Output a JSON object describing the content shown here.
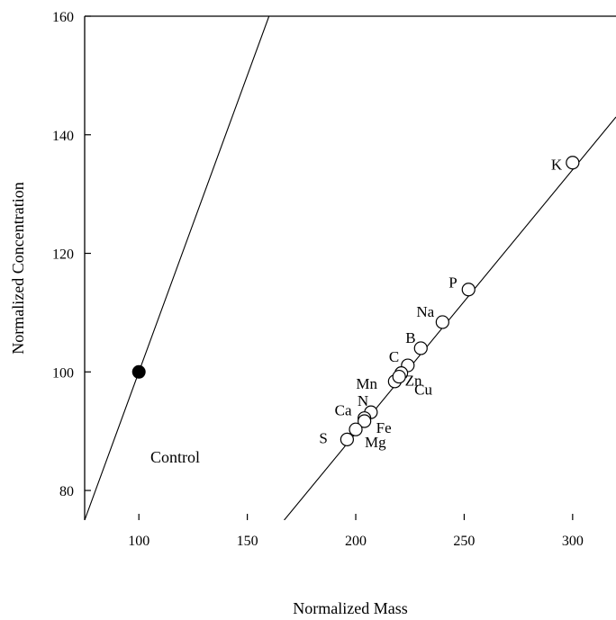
{
  "chart_data": {
    "type": "scatter",
    "xlabel": "Normalized Mass",
    "ylabel": "Normalized Concentration",
    "xlim": [
      75,
      320
    ],
    "ylim": [
      75,
      160
    ],
    "xticks": [
      100,
      150,
      200,
      250,
      300
    ],
    "yticks": [
      80,
      100,
      120,
      140,
      160
    ],
    "grid": false,
    "annotation": "Control",
    "control_point": {
      "x": 100,
      "y": 100,
      "fill": "#000000"
    },
    "control_line": {
      "x1": 75,
      "y1": 75,
      "x2": 160,
      "y2": 160
    },
    "fit_line": {
      "x1": 167,
      "y1": 75,
      "x2": 320,
      "y2": 143
    },
    "points": [
      {
        "label": "K",
        "x": 300,
        "y": 135.3
      },
      {
        "label": "P",
        "x": 252,
        "y": 113.9
      },
      {
        "label": "Na",
        "x": 240,
        "y": 108.4
      },
      {
        "label": "B",
        "x": 230,
        "y": 104.0
      },
      {
        "label": "C",
        "x": 224,
        "y": 101.1
      },
      {
        "label": "Zn",
        "x": 221,
        "y": 99.8
      },
      {
        "label": "Mn",
        "x": 218,
        "y": 98.4
      },
      {
        "label": "Cu",
        "x": 220,
        "y": 99.2
      },
      {
        "label": "N",
        "x": 207,
        "y": 93.2
      },
      {
        "label": "Ca",
        "x": 204,
        "y": 92.2
      },
      {
        "label": "Fe",
        "x": 204,
        "y": 91.7
      },
      {
        "label": "S",
        "x": 196,
        "y": 88.6
      },
      {
        "label": "Mg",
        "x": 200,
        "y": 90.3
      }
    ]
  }
}
